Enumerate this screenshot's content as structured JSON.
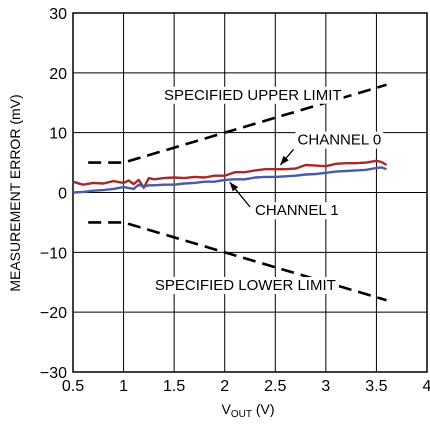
{
  "chart_data": {
    "type": "line",
    "xlabel": {
      "main": "V",
      "sub": "OUT",
      "unit": " (V)"
    },
    "ylabel": "MEASUREMENT ERROR (mV)",
    "xlim": [
      0.5,
      4
    ],
    "ylim": [
      -30,
      30
    ],
    "xticks": [
      "0.5",
      "1",
      "1.5",
      "2",
      "2.5",
      "3",
      "3.5",
      "4"
    ],
    "yticks": [
      "30",
      "20",
      "10",
      "0",
      "−10",
      "−20",
      "−30"
    ],
    "grid": true,
    "colors": {
      "channel0": "#a52a2a",
      "channel1": "#4a5aa8",
      "limit": "#000000",
      "grid": "#000000"
    },
    "series": [
      {
        "name": "CHANNEL 0",
        "style": "solid",
        "x": [
          0.5,
          0.6,
          0.7,
          0.8,
          0.9,
          1.0,
          1.05,
          1.1,
          1.15,
          1.2,
          1.25,
          1.3,
          1.4,
          1.5,
          1.6,
          1.7,
          1.8,
          1.9,
          2.0,
          2.1,
          2.2,
          2.3,
          2.4,
          2.5,
          2.6,
          2.7,
          2.8,
          2.9,
          3.0,
          3.1,
          3.2,
          3.3,
          3.4,
          3.5,
          3.55,
          3.6
        ],
        "y": [
          1.8,
          1.3,
          1.6,
          1.5,
          1.9,
          1.6,
          2.0,
          1.4,
          2.1,
          0.8,
          2.4,
          2.2,
          2.4,
          2.5,
          2.4,
          2.6,
          2.5,
          2.8,
          2.8,
          3.4,
          3.4,
          3.7,
          3.9,
          3.9,
          3.9,
          4.0,
          4.6,
          4.5,
          4.4,
          4.8,
          4.9,
          4.9,
          5.0,
          5.3,
          5.1,
          4.6
        ]
      },
      {
        "name": "CHANNEL 1",
        "style": "solid",
        "x": [
          0.5,
          0.6,
          0.7,
          0.8,
          0.9,
          1.0,
          1.1,
          1.15,
          1.2,
          1.25,
          1.3,
          1.4,
          1.5,
          1.6,
          1.7,
          1.8,
          1.9,
          2.0,
          2.1,
          2.2,
          2.3,
          2.4,
          2.5,
          2.6,
          2.7,
          2.8,
          2.9,
          3.0,
          3.1,
          3.2,
          3.3,
          3.4,
          3.5,
          3.55,
          3.6
        ],
        "y": [
          0.0,
          0.1,
          0.3,
          0.4,
          0.6,
          0.9,
          0.6,
          1.3,
          1.0,
          1.2,
          1.2,
          1.3,
          1.3,
          1.5,
          1.6,
          1.8,
          1.8,
          2.1,
          2.2,
          2.2,
          2.5,
          2.6,
          2.6,
          2.7,
          2.8,
          3.0,
          3.1,
          3.3,
          3.5,
          3.6,
          3.7,
          3.8,
          4.1,
          4.2,
          3.9
        ]
      },
      {
        "name": "SPECIFIED UPPER LIMIT",
        "style": "dashed",
        "x": [
          0.65,
          1.0,
          3.5,
          3.6
        ],
        "y": [
          5,
          5,
          17.5,
          18
        ]
      },
      {
        "name": "SPECIFIED LOWER LIMIT",
        "style": "dashed",
        "x": [
          0.65,
          1.0,
          3.5,
          3.6
        ],
        "y": [
          -5,
          -5,
          -17.5,
          -18
        ]
      }
    ],
    "annotations": [
      {
        "text": "SPECIFIED UPPER LIMIT",
        "x": 1.4,
        "y": 15.5
      },
      {
        "text": "CHANNEL 0",
        "x": 2.72,
        "y": 8.0
      },
      {
        "text": "CHANNEL 1",
        "x": 2.3,
        "y": -3.8
      },
      {
        "text": "SPECIFIED LOWER LIMIT",
        "x": 1.31,
        "y": -16.3
      }
    ],
    "arrows": [
      {
        "from": [
          2.68,
          7.2
        ],
        "to": [
          2.55,
          4.6
        ]
      },
      {
        "from": [
          2.25,
          -2.4
        ],
        "to": [
          2.05,
          1.7
        ]
      }
    ]
  }
}
